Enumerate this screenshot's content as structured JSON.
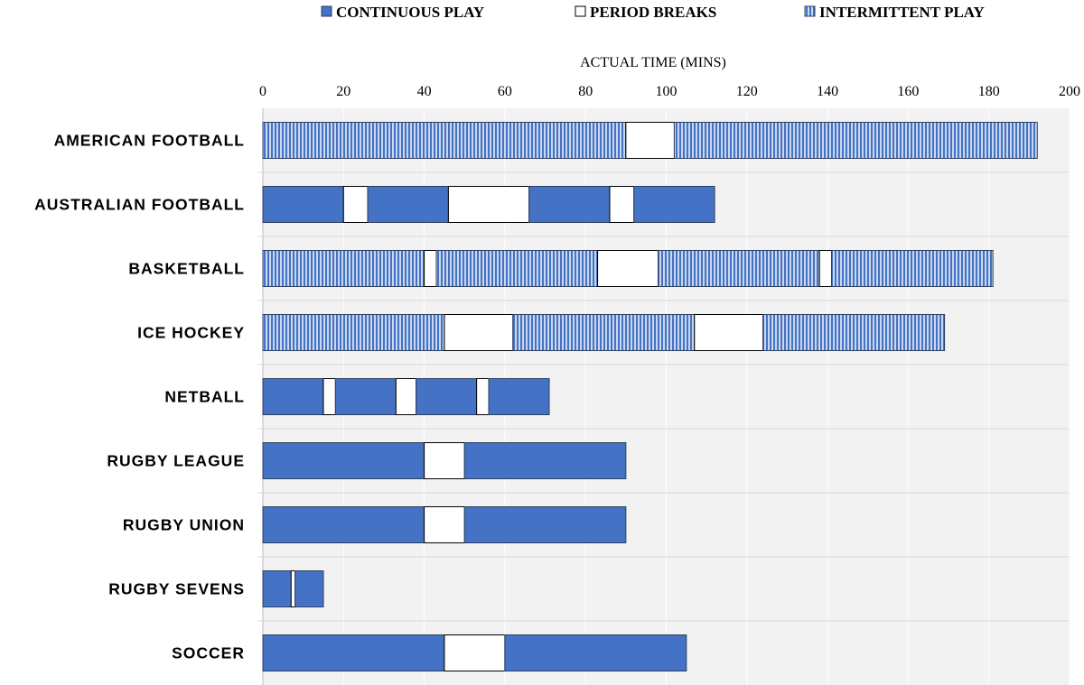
{
  "colors": {
    "continuous": "#4472c4",
    "stroke": "#2f3f5f",
    "stripe_light": "#c9d7ef",
    "break": "#ffffff",
    "plot_bg": "#f2f2f2",
    "grid": "#ffffff"
  },
  "chart_data": {
    "type": "bar",
    "orientation": "horizontal",
    "stacked": true,
    "title": "",
    "xlabel": "ACTUAL TIME (MINS)",
    "ylabel": "",
    "xlim": [
      0,
      200
    ],
    "xticks": [
      0,
      20,
      40,
      60,
      80,
      100,
      120,
      140,
      160,
      180,
      200
    ],
    "legend_position": "top",
    "legend": [
      {
        "key": "continuous",
        "label": "CONTINUOUS PLAY"
      },
      {
        "key": "break",
        "label": "PERIOD BREAKS"
      },
      {
        "key": "intermittent",
        "label": "INTERMITTENT PLAY"
      }
    ],
    "categories": [
      {
        "name": "AMERICAN FOOTBALL",
        "segments": [
          {
            "type": "intermittent",
            "value": 90
          },
          {
            "type": "break",
            "value": 12
          },
          {
            "type": "intermittent",
            "value": 90
          }
        ]
      },
      {
        "name": "AUSTRALIAN FOOTBALL",
        "segments": [
          {
            "type": "continuous",
            "value": 20
          },
          {
            "type": "break",
            "value": 6
          },
          {
            "type": "continuous",
            "value": 20
          },
          {
            "type": "break",
            "value": 20
          },
          {
            "type": "continuous",
            "value": 20
          },
          {
            "type": "break",
            "value": 6
          },
          {
            "type": "continuous",
            "value": 20
          }
        ]
      },
      {
        "name": "BASKETBALL",
        "segments": [
          {
            "type": "intermittent",
            "value": 40
          },
          {
            "type": "break",
            "value": 3
          },
          {
            "type": "intermittent",
            "value": 40
          },
          {
            "type": "break",
            "value": 15
          },
          {
            "type": "intermittent",
            "value": 40
          },
          {
            "type": "break",
            "value": 3
          },
          {
            "type": "intermittent",
            "value": 40
          }
        ]
      },
      {
        "name": "ICE HOCKEY",
        "segments": [
          {
            "type": "intermittent",
            "value": 45
          },
          {
            "type": "break",
            "value": 17
          },
          {
            "type": "intermittent",
            "value": 45
          },
          {
            "type": "break",
            "value": 17
          },
          {
            "type": "intermittent",
            "value": 45
          }
        ]
      },
      {
        "name": "NETBALL",
        "segments": [
          {
            "type": "continuous",
            "value": 15
          },
          {
            "type": "break",
            "value": 3
          },
          {
            "type": "continuous",
            "value": 15
          },
          {
            "type": "break",
            "value": 5
          },
          {
            "type": "continuous",
            "value": 15
          },
          {
            "type": "break",
            "value": 3
          },
          {
            "type": "continuous",
            "value": 15
          }
        ]
      },
      {
        "name": "RUGBY LEAGUE",
        "segments": [
          {
            "type": "continuous",
            "value": 40
          },
          {
            "type": "break",
            "value": 10
          },
          {
            "type": "continuous",
            "value": 40
          }
        ]
      },
      {
        "name": "RUGBY UNION",
        "segments": [
          {
            "type": "continuous",
            "value": 40
          },
          {
            "type": "break",
            "value": 10
          },
          {
            "type": "continuous",
            "value": 40
          }
        ]
      },
      {
        "name": "RUGBY SEVENS",
        "segments": [
          {
            "type": "continuous",
            "value": 7
          },
          {
            "type": "break",
            "value": 1
          },
          {
            "type": "continuous",
            "value": 7
          }
        ]
      },
      {
        "name": "SOCCER",
        "segments": [
          {
            "type": "continuous",
            "value": 45
          },
          {
            "type": "break",
            "value": 15
          },
          {
            "type": "continuous",
            "value": 45
          }
        ]
      }
    ]
  }
}
